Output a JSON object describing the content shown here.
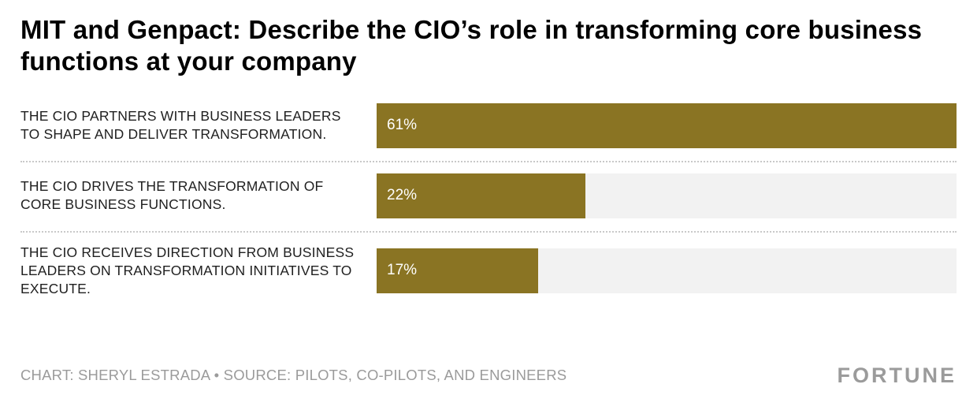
{
  "title": "MIT and Genpact: Describe the CIO’s role in transforming core business functions at your company",
  "colors": {
    "bar": "#8a7423",
    "track": "#f2f2f2",
    "bar_label": "#ffffff"
  },
  "chart_data": {
    "type": "bar",
    "orientation": "horizontal",
    "title": "MIT and Genpact: Describe the CIO’s role in transforming core business functions at your company",
    "categories": [
      "THE CIO PARTNERS WITH BUSINESS LEADERS TO SHAPE AND DELIVER TRANSFORMATION.",
      "THE CIO DRIVES THE TRANSFORMATION OF CORE BUSINESS FUNCTIONS.",
      "THE CIO RECEIVES DIRECTION FROM BUSINESS LEADERS ON TRANSFORMATION INITIATIVES TO EXECUTE."
    ],
    "values": [
      61,
      22,
      17
    ],
    "value_labels": [
      "61%",
      "22%",
      "17%"
    ],
    "max_value": 61,
    "xlabel": "",
    "ylabel": "",
    "grid": false,
    "legend": false
  },
  "rows": [
    {
      "label": "THE CIO PARTNERS WITH BUSINESS LEADERS TO SHAPE AND DELIVER TRANSFORMATION.",
      "value_label": "61%"
    },
    {
      "label": "THE CIO DRIVES THE TRANSFORMATION OF CORE BUSINESS FUNCTIONS.",
      "value_label": "22%"
    },
    {
      "label": "THE CIO RECEIVES DIRECTION FROM BUSINESS LEADERS ON TRANSFORMATION INITIATIVES TO EXECUTE.",
      "value_label": "17%"
    }
  ],
  "footer": {
    "credit": "CHART: SHERYL ESTRADA • SOURCE: PILOTS, CO-PILOTS, AND ENGINEERS",
    "brand": "FORTUNE"
  }
}
